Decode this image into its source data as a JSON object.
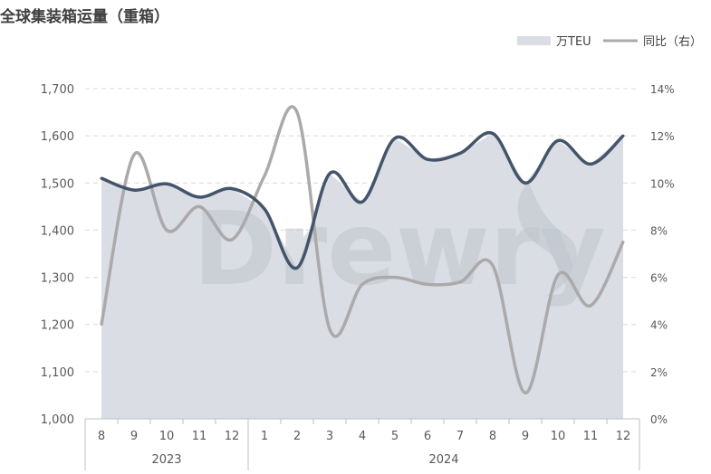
{
  "chart_data": {
    "type": "area",
    "title": "全球集装箱运量（重箱）",
    "categories": [
      "8",
      "9",
      "10",
      "11",
      "12",
      "1",
      "2",
      "3",
      "4",
      "5",
      "6",
      "7",
      "8",
      "9",
      "10",
      "11",
      "12"
    ],
    "groups": [
      {
        "label": "2023",
        "from": 0,
        "to": 4
      },
      {
        "label": "2024",
        "from": 5,
        "to": 16
      }
    ],
    "series": [
      {
        "name": "万TEU",
        "kind": "area+line",
        "axis": "left",
        "values": [
          1510,
          1485,
          1498,
          1470,
          1488,
          1445,
          1320,
          1520,
          1460,
          1595,
          1550,
          1563,
          1605,
          1500,
          1590,
          1540,
          1600
        ]
      },
      {
        "name": "同比（右）",
        "kind": "line",
        "axis": "right",
        "values": [
          4.0,
          11.2,
          8.0,
          9.0,
          7.6,
          10.3,
          13.0,
          3.8,
          5.7,
          6.0,
          5.7,
          5.8,
          6.5,
          1.1,
          6.1,
          4.8,
          7.5
        ]
      }
    ],
    "y_left": {
      "min": 1000,
      "max": 1700,
      "step": 100
    },
    "y_left_ticks": [
      "1,000",
      "1,100",
      "1,200",
      "1,300",
      "1,400",
      "1,500",
      "1,600",
      "1,700"
    ],
    "y_right": {
      "min": 0,
      "max": 14,
      "step": 2
    },
    "y_right_ticks": [
      "0%",
      "2%",
      "4%",
      "6%",
      "8%",
      "10%",
      "12%",
      "14%"
    ],
    "grid": true,
    "legend_position": "top-right",
    "watermark": "Drewry",
    "colors": {
      "area": "#dadde3",
      "volume_line": "#44546a",
      "yoy_line": "#aba9aa",
      "grid": "#d9d9d9",
      "axis": "#bfbfbf"
    }
  }
}
